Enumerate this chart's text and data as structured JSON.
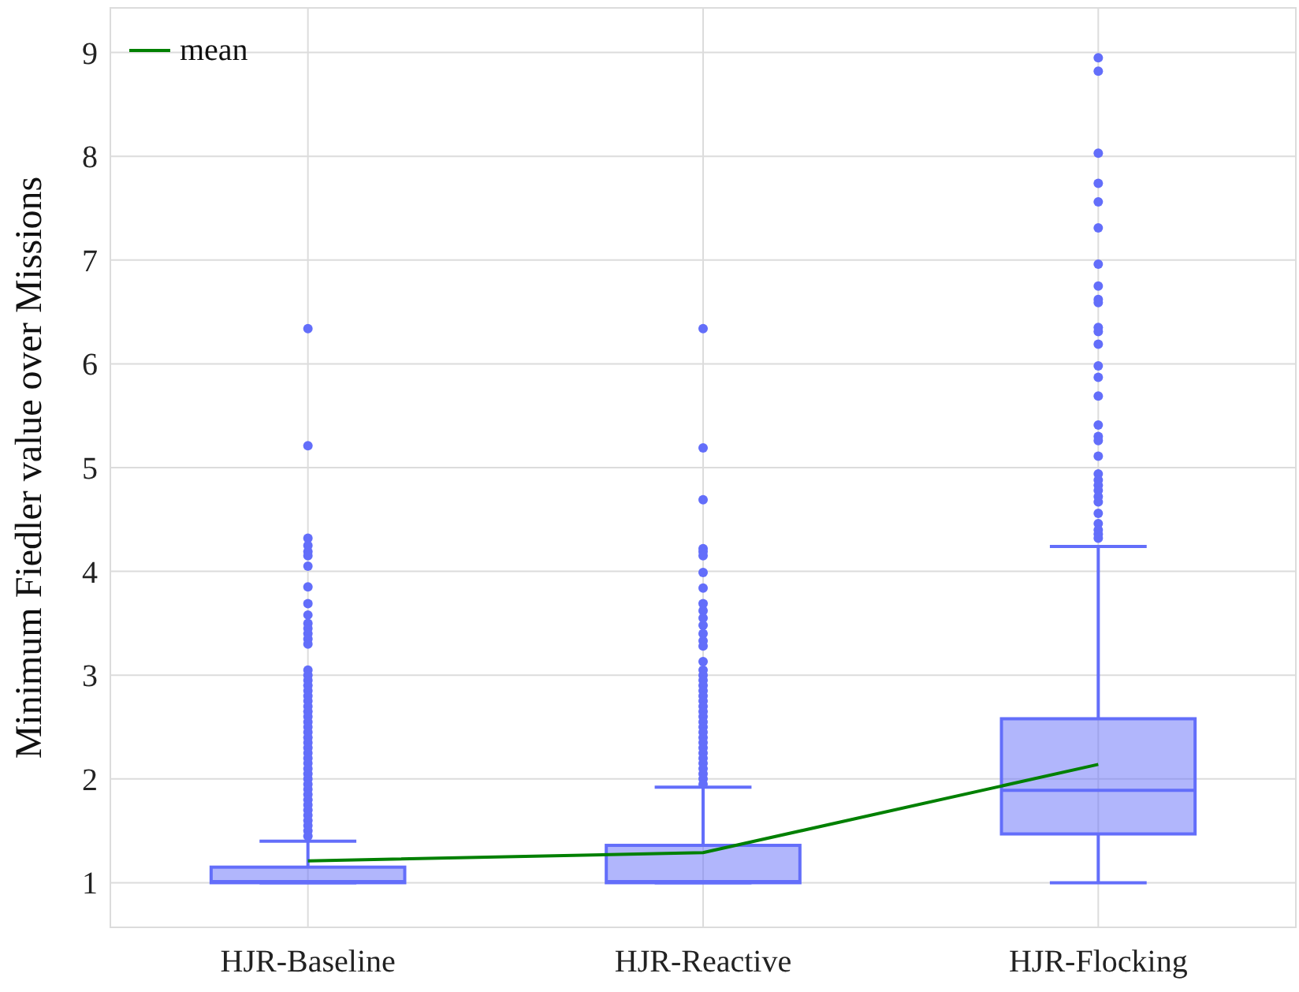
{
  "chart_data": {
    "type": "box",
    "ylabel": "Minimum Fiedler value over Missions",
    "categories": [
      "HJR-Baseline",
      "HJR-Reactive",
      "HJR-Flocking"
    ],
    "series": [
      {
        "type": "box",
        "color": "#636efa",
        "boxes": [
          {
            "low": 1.0,
            "q1": 1.0,
            "median": 1.01,
            "q3": 1.15,
            "high": 1.4,
            "outliers": [
              6.34,
              5.21,
              4.32,
              4.25,
              4.19,
              4.15,
              4.05,
              3.85,
              3.69,
              3.58,
              3.5,
              3.45,
              3.4,
              3.35,
              3.3,
              3.05,
              3.0,
              2.95,
              2.9,
              2.85,
              2.8,
              2.75,
              2.7,
              2.65,
              2.6,
              2.55,
              2.5,
              2.45,
              2.4,
              2.35,
              2.3,
              2.25,
              2.2,
              2.15,
              2.1,
              2.05,
              2.0,
              1.95,
              1.9,
              1.85,
              1.8,
              1.75,
              1.7,
              1.65,
              1.6,
              1.55,
              1.5,
              1.45
            ]
          },
          {
            "low": 1.0,
            "q1": 1.0,
            "median": 1.01,
            "q3": 1.36,
            "high": 1.92,
            "outliers": [
              6.34,
              5.19,
              4.69,
              4.22,
              4.19,
              4.15,
              3.99,
              3.84,
              3.69,
              3.62,
              3.55,
              3.48,
              3.4,
              3.33,
              3.28,
              3.13,
              3.05,
              3.0,
              2.95,
              2.9,
              2.85,
              2.8,
              2.75,
              2.7,
              2.65,
              2.6,
              2.55,
              2.5,
              2.45,
              2.4,
              2.35,
              2.3,
              2.25,
              2.2,
              2.15,
              2.1,
              2.05,
              2.0,
              1.95
            ]
          },
          {
            "low": 1.0,
            "q1": 1.47,
            "median": 1.89,
            "q3": 2.58,
            "high": 4.24,
            "outliers": [
              8.95,
              8.82,
              8.03,
              7.74,
              7.56,
              7.31,
              6.96,
              6.75,
              6.62,
              6.59,
              6.35,
              6.31,
              6.19,
              5.98,
              5.87,
              5.69,
              5.41,
              5.3,
              5.26,
              5.11,
              4.94,
              4.88,
              4.83,
              4.78,
              4.72,
              4.67,
              4.56,
              4.46,
              4.4,
              4.36,
              4.32
            ]
          }
        ]
      },
      {
        "type": "line",
        "name": "mean",
        "color": "#008000",
        "values": [
          1.21,
          1.29,
          2.14
        ]
      }
    ],
    "ylim": [
      0.57,
      9.43
    ],
    "yticks": [
      1,
      2,
      3,
      4,
      5,
      6,
      7,
      8,
      9
    ],
    "grid": true,
    "legend": "top left"
  }
}
